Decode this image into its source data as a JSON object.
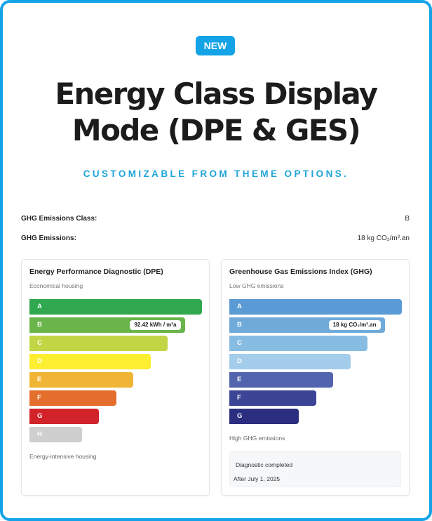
{
  "header": {
    "badge": "NEW",
    "title_line1": "Energy Class Display",
    "title_line2": "Mode (DPE & GES)",
    "subtitle": "CUSTOMIZABLE FROM THEME OPTIONS."
  },
  "details": {
    "ghg_class_label": "GHG Emissions Class:",
    "ghg_class_value": "B",
    "ghg_emissions_label": "GHG Emissions:",
    "ghg_emissions_value": "18 kg CO₂/m².an"
  },
  "dpe": {
    "title": "Energy Performance Diagnostic (DPE)",
    "top_label": "Economical housing",
    "bottom_label": "Energy-intensive housing",
    "current_class": "B",
    "current_value": "92.42 kWh / m²a",
    "classes": [
      {
        "label": "A",
        "color": "#2fa84f"
      },
      {
        "label": "B",
        "color": "#69b54a"
      },
      {
        "label": "C",
        "color": "#c1d545"
      },
      {
        "label": "D",
        "color": "#fcee31"
      },
      {
        "label": "E",
        "color": "#f1b535"
      },
      {
        "label": "F",
        "color": "#e46f2c"
      },
      {
        "label": "G",
        "color": "#d2232a"
      },
      {
        "label": "H",
        "color": "#cfcfcf"
      }
    ]
  },
  "ghg": {
    "title": "Greenhouse Gas Emissions Index (GHG)",
    "top_label": "Low GHG emissions",
    "bottom_label": "High GHG emissions",
    "current_class": "B",
    "current_value": "18 kg CO₂/m².an",
    "classes": [
      {
        "label": "A",
        "color": "#5b9bd5"
      },
      {
        "label": "B",
        "color": "#6faad9"
      },
      {
        "label": "C",
        "color": "#87bde3"
      },
      {
        "label": "D",
        "color": "#a3cdea"
      },
      {
        "label": "E",
        "color": "#5164ad"
      },
      {
        "label": "F",
        "color": "#3b4495"
      },
      {
        "label": "G",
        "color": "#2b2d7f"
      }
    ],
    "info_line1": "Diagnostic completed",
    "info_line2": "After July 1, 2025"
  }
}
